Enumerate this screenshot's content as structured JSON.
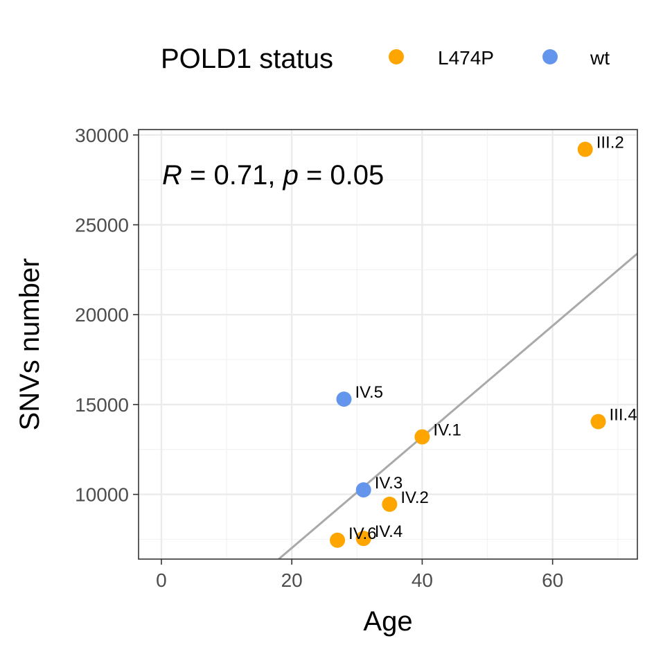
{
  "chart_data": {
    "type": "scatter",
    "xlabel": "Age",
    "ylabel": "SNVs number",
    "xlim": [
      -3.5,
      73
    ],
    "ylim": [
      6400,
      30300
    ],
    "x_ticks": [
      0,
      20,
      40,
      60
    ],
    "y_ticks": [
      10000,
      15000,
      20000,
      25000,
      30000
    ],
    "grid": true,
    "legend": {
      "title": "POLD1 status",
      "position": "top",
      "entries": [
        {
          "label": "L474P",
          "color": "#FFA500"
        },
        {
          "label": "wt",
          "color": "#6495ED"
        }
      ]
    },
    "annotation": {
      "r_symbol": "R",
      "r_text": " = 0.71, ",
      "p_symbol": "p",
      "p_text": " = 0.05"
    },
    "regression_line": {
      "color": "#A9A9A9",
      "points": [
        [
          18,
          6400
        ],
        [
          73,
          23400
        ]
      ]
    },
    "points": [
      {
        "label": "III.2",
        "x": 65,
        "y": 29200,
        "status": "L474P"
      },
      {
        "label": "III.4",
        "x": 67,
        "y": 14050,
        "status": "L474P"
      },
      {
        "label": "IV.1",
        "x": 40,
        "y": 13200,
        "status": "L474P"
      },
      {
        "label": "IV.2",
        "x": 35,
        "y": 9450,
        "status": "L474P"
      },
      {
        "label": "IV.4",
        "x": 31,
        "y": 7550,
        "status": "L474P"
      },
      {
        "label": "IV.6",
        "x": 27,
        "y": 7450,
        "status": "L474P"
      },
      {
        "label": "IV.5",
        "x": 28,
        "y": 15300,
        "status": "wt"
      },
      {
        "label": "IV.3",
        "x": 31,
        "y": 10250,
        "status": "wt"
      }
    ]
  }
}
